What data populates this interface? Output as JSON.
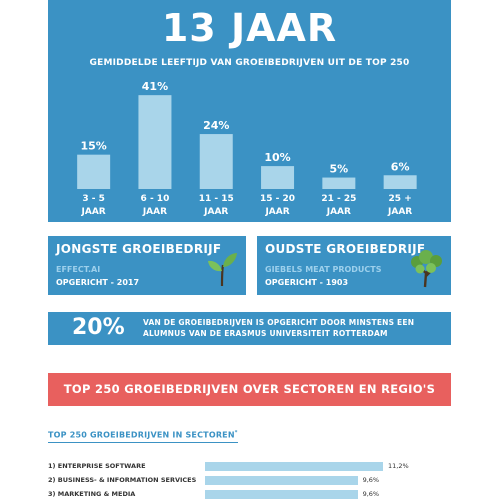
{
  "header": {
    "big_title": "13 JAAR",
    "subtitle": "GEMIDDELDE LEEFTIJD VAN GROEIBEDRIJVEN UIT DE TOP 250"
  },
  "chart_data": {
    "type": "bar",
    "categories": [
      "3 - 5|JAAR",
      "6 - 10|JAAR",
      "11 - 15|JAAR",
      "15 - 20|JAAR",
      "21 - 25|JAAR",
      "25 +|JAAR"
    ],
    "values": [
      15,
      41,
      24,
      10,
      5,
      6
    ],
    "value_labels": [
      "15%",
      "41%",
      "24%",
      "10%",
      "5%",
      "6%"
    ],
    "ylim": [
      0,
      45
    ],
    "bar_color": "#a9d5ea",
    "panel_color": "#3b92c4"
  },
  "youngest": {
    "title": "JONGSTE GROEIBEDRIJF",
    "name": "EFFECT.AI",
    "founded": "OPGERICHT - 2017",
    "icon": "sprout-icon"
  },
  "oldest": {
    "title": "OUDSTE GROEIBEDRIJF",
    "name": "GIEBELS MEAT PRODUCTS",
    "founded": "OPGERICHT - 1903",
    "icon": "tree-icon"
  },
  "alumni": {
    "percent": "20%",
    "text": "VAN DE GROEIBEDRIJVEN IS OPGERICHT DOOR MINSTENS EEN ALUMNUS VAN DE ERASMUS UNIVERSITEIT ROTTERDAM"
  },
  "sectors_section": {
    "title": "TOP 250 GROEIBEDRIJVEN OVER SECTOREN EN REGIO'S",
    "accent": "#e8605e"
  },
  "sectors": {
    "heading": "TOP 250 GROEIBEDRIJVEN IN SECTOREN",
    "heading_mark": "*",
    "items": [
      {
        "label": "1) ENTERPRISE SOFTWARE",
        "value": 11.2,
        "value_label": "11,2%"
      },
      {
        "label": "2) BUSINESS- & INFORMATION SERVICES",
        "value": 9.6,
        "value_label": "9,6%"
      },
      {
        "label": "3) MARKETING & MEDIA",
        "value": 9.6,
        "value_label": "9,6%"
      }
    ]
  }
}
